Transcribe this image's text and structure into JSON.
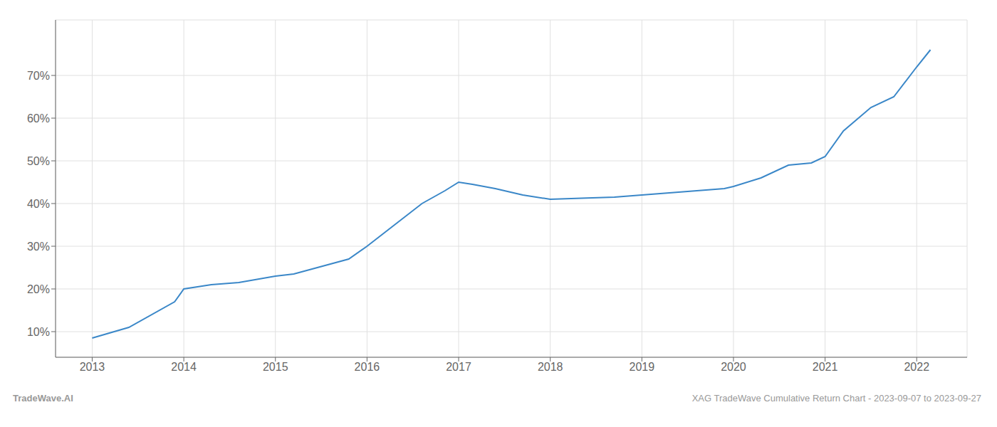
{
  "chart_data": {
    "type": "line",
    "x": [
      2013.0,
      2013.4,
      2013.9,
      2014.0,
      2014.15,
      2014.3,
      2014.6,
      2015.0,
      2015.2,
      2015.8,
      2016.0,
      2016.3,
      2016.6,
      2016.85,
      2017.0,
      2017.15,
      2017.4,
      2017.7,
      2018.0,
      2018.4,
      2018.7,
      2019.0,
      2019.3,
      2019.6,
      2019.9,
      2020.0,
      2020.3,
      2020.6,
      2020.85,
      2021.0,
      2021.2,
      2021.5,
      2021.75,
      2022.0,
      2022.15
    ],
    "values": [
      8.5,
      11,
      17,
      20,
      20.5,
      21,
      21.5,
      23,
      23.5,
      27,
      30,
      35,
      40,
      43,
      45,
      44.5,
      43.5,
      42,
      41,
      41.3,
      41.5,
      42,
      42.5,
      43,
      43.5,
      44,
      46,
      49,
      49.5,
      51,
      57,
      62.5,
      65,
      72,
      76
    ],
    "color": "#3a87c8",
    "xlim": [
      2012.6,
      2022.55
    ],
    "ylim": [
      4,
      83
    ],
    "xticks": [
      2013,
      2014,
      2015,
      2016,
      2017,
      2018,
      2019,
      2020,
      2021,
      2022
    ],
    "yticks": [
      {
        "value": 10,
        "label": "10%"
      },
      {
        "value": 20,
        "label": "20%"
      },
      {
        "value": 30,
        "label": "30%"
      },
      {
        "value": 40,
        "label": "40%"
      },
      {
        "value": 50,
        "label": "50%"
      },
      {
        "value": 60,
        "label": "60%"
      },
      {
        "value": 70,
        "label": "70%"
      }
    ],
    "grid": true,
    "annotations": [
      "TradeWave.AI",
      "XAG TradeWave Cumulative Return Chart - 2023-09-07 to 2023-09-27"
    ]
  }
}
